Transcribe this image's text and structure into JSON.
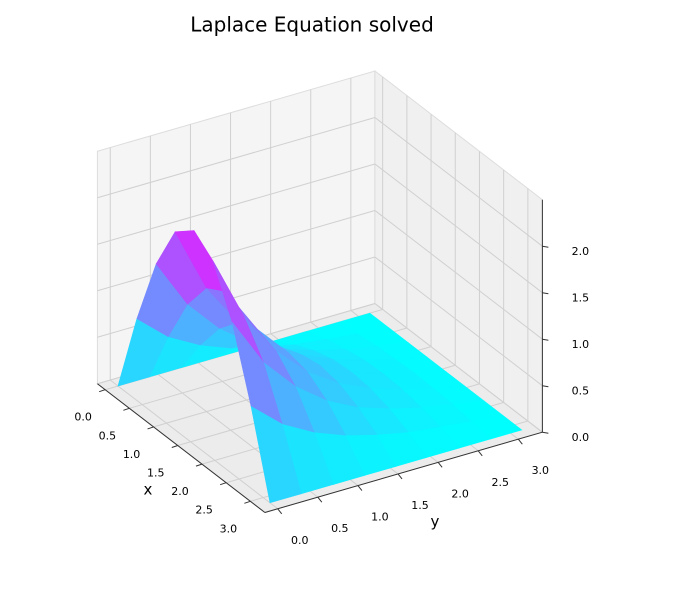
{
  "chart_data": {
    "type": "surface",
    "title": "Laplace Equation solved",
    "xlabel": "x",
    "ylabel": "y",
    "colormap": "cool",
    "x": [
      0,
      0.39,
      0.79,
      1.18,
      1.57,
      1.96,
      2.36,
      2.75,
      3.14
    ],
    "y": [
      0,
      0.39,
      0.79,
      1.18,
      1.57,
      1.96,
      2.36,
      2.75,
      3.14
    ],
    "z": [
      [
        0,
        0,
        0,
        0,
        0,
        0,
        0,
        0,
        0
      ],
      [
        0.88,
        0.59,
        0.4,
        0.27,
        0.18,
        0.11,
        0.07,
        0.03,
        0
      ],
      [
        1.63,
        1.1,
        0.74,
        0.49,
        0.32,
        0.21,
        0.12,
        0.06,
        0
      ],
      [
        2.13,
        1.43,
        0.96,
        0.64,
        0.42,
        0.27,
        0.16,
        0.07,
        0
      ],
      [
        2.3,
        1.55,
        1.04,
        0.69,
        0.46,
        0.29,
        0.17,
        0.08,
        0
      ],
      [
        2.13,
        1.43,
        0.96,
        0.64,
        0.42,
        0.27,
        0.16,
        0.07,
        0
      ],
      [
        1.63,
        1.1,
        0.74,
        0.49,
        0.32,
        0.21,
        0.12,
        0.06,
        0
      ],
      [
        0.88,
        0.59,
        0.4,
        0.27,
        0.18,
        0.11,
        0.07,
        0.03,
        0
      ],
      [
        0,
        0,
        0,
        0,
        0,
        0,
        0,
        0,
        0
      ]
    ],
    "xlim": [
      -0.16,
      3.3
    ],
    "ylim": [
      -0.16,
      3.3
    ],
    "zlim": [
      0,
      2.5
    ],
    "xticks": [
      {
        "value": 0,
        "label": "0.0"
      },
      {
        "value": 0.5,
        "label": "0.5"
      },
      {
        "value": 1,
        "label": "1.0"
      },
      {
        "value": 1.5,
        "label": "1.5"
      },
      {
        "value": 2,
        "label": "2.0"
      },
      {
        "value": 2.5,
        "label": "2.5"
      },
      {
        "value": 3,
        "label": "3.0"
      }
    ],
    "yticks": [
      {
        "value": 0,
        "label": "0.0"
      },
      {
        "value": 0.5,
        "label": "0.5"
      },
      {
        "value": 1,
        "label": "1.0"
      },
      {
        "value": 1.5,
        "label": "1.5"
      },
      {
        "value": 2,
        "label": "2.0"
      },
      {
        "value": 2.5,
        "label": "2.5"
      },
      {
        "value": 3,
        "label": "3.0"
      }
    ],
    "zticks": [
      {
        "value": 0,
        "label": "0.0"
      },
      {
        "value": 0.5,
        "label": "0.5"
      },
      {
        "value": 1,
        "label": "1.0"
      },
      {
        "value": 1.5,
        "label": "1.5"
      },
      {
        "value": 2,
        "label": "2.0"
      }
    ],
    "grid": true
  }
}
